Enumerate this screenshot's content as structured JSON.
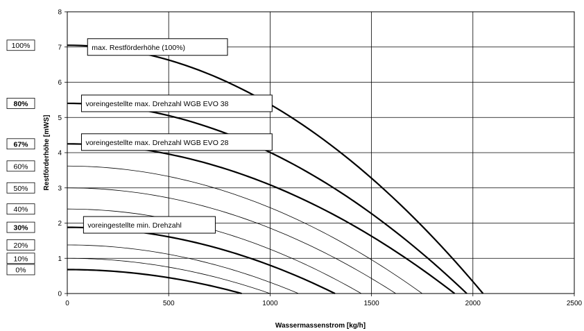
{
  "chart_data": {
    "type": "line",
    "xlabel": "Wassermassenstrom [kg/h]",
    "ylabel": "Restförderhöhe [mWS]",
    "xlim": [
      0,
      2500
    ],
    "ylim": [
      0,
      8
    ],
    "x_ticks": [
      "0",
      "500",
      "1000",
      "1500",
      "2000",
      "2500"
    ],
    "y_ticks": [
      "0",
      "1",
      "2",
      "3",
      "4",
      "5",
      "6",
      "7",
      "8"
    ],
    "grid": true,
    "speed_labels": [
      {
        "label": "100%",
        "bold": false
      },
      {
        "label": "80%",
        "bold": true
      },
      {
        "label": "67%",
        "bold": true
      },
      {
        "label": "60%",
        "bold": false
      },
      {
        "label": "50%",
        "bold": false
      },
      {
        "label": "40%",
        "bold": false
      },
      {
        "label": "30%",
        "bold": true
      },
      {
        "label": "20%",
        "bold": false
      },
      {
        "label": "10%",
        "bold": false
      },
      {
        "label": "0%",
        "bold": false
      }
    ],
    "series": [
      {
        "label": "100%",
        "y0": 7.05,
        "x_zero": 2050,
        "bold": true
      },
      {
        "label": "80%",
        "y0": 5.4,
        "x_zero": 1970,
        "bold": true
      },
      {
        "label": "67%",
        "y0": 4.25,
        "x_zero": 1910,
        "bold": true
      },
      {
        "label": "60%",
        "y0": 3.62,
        "x_zero": 1750,
        "bold": false
      },
      {
        "label": "50%",
        "y0": 3.0,
        "x_zero": 1620,
        "bold": false
      },
      {
        "label": "40%",
        "y0": 2.4,
        "x_zero": 1450,
        "bold": false
      },
      {
        "label": "30%",
        "y0": 1.88,
        "x_zero": 1320,
        "bold": true
      },
      {
        "label": "20%",
        "y0": 1.38,
        "x_zero": 1140,
        "bold": false
      },
      {
        "label": "10%",
        "y0": 1.0,
        "x_zero": 1000,
        "bold": false
      },
      {
        "label": "0%",
        "y0": 0.68,
        "x_zero": 860,
        "bold": true
      }
    ],
    "annotations": [
      {
        "text": "max. Restförderhöhe  (100%)",
        "x0": 100,
        "x1": 790,
        "y": 7.0
      },
      {
        "text": "voreingestellte max. Drehzahl  WGB EVO 38",
        "x0": 70,
        "x1": 1010,
        "y": 5.4
      },
      {
        "text": "voreingestellte max. Drehzahl  WGB EVO 28",
        "x0": 70,
        "x1": 1010,
        "y": 4.3
      },
      {
        "text": "voreingestellte min. Drehzahl",
        "x0": 80,
        "x1": 730,
        "y": 1.95
      }
    ]
  }
}
